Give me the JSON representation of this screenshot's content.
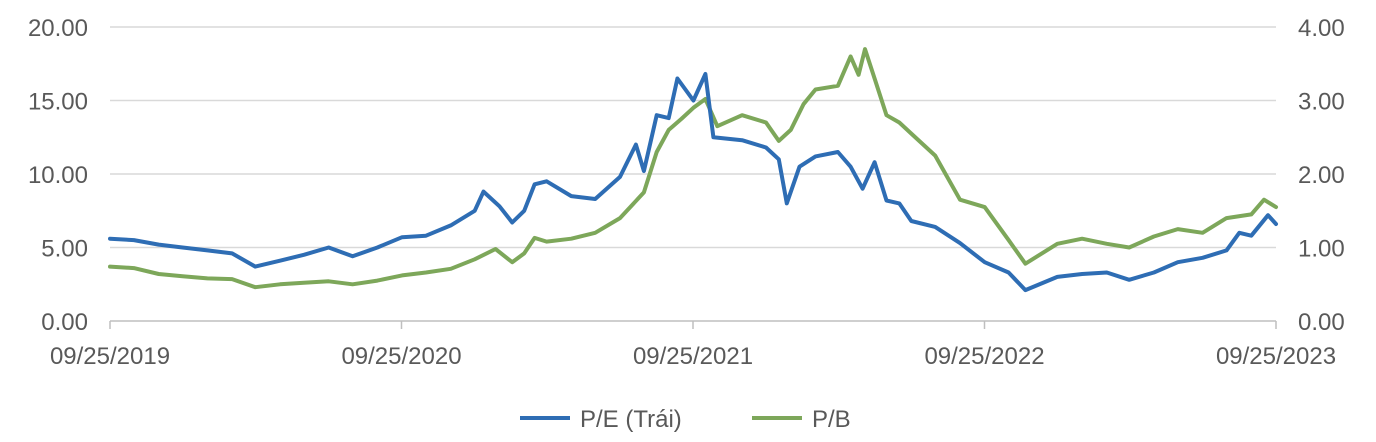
{
  "chart_data": {
    "type": "line",
    "x_ticks": [
      "09/25/2019",
      "09/25/2020",
      "09/25/2021",
      "09/25/2022",
      "09/25/2023"
    ],
    "y_left": {
      "ylim": [
        0,
        20
      ],
      "ticks": [
        "0.00",
        "5.00",
        "10.00",
        "15.00",
        "20.00"
      ]
    },
    "y_right": {
      "ylim": [
        0,
        4
      ],
      "ticks": [
        "0.00",
        "1.00",
        "2.00",
        "3.00",
        "4.00"
      ]
    },
    "grid": true,
    "legend_position": "bottom",
    "series": [
      {
        "name": "P/E (Trái)",
        "axis": "left",
        "color": "#2e6db4",
        "points": [
          [
            "2019-09-25",
            5.6
          ],
          [
            "2019-10-25",
            5.5
          ],
          [
            "2019-11-25",
            5.2
          ],
          [
            "2019-12-25",
            5.0
          ],
          [
            "2020-01-25",
            4.8
          ],
          [
            "2020-02-25",
            4.6
          ],
          [
            "2020-03-25",
            3.7
          ],
          [
            "2020-04-25",
            4.1
          ],
          [
            "2020-05-25",
            4.5
          ],
          [
            "2020-06-25",
            5.0
          ],
          [
            "2020-07-25",
            4.4
          ],
          [
            "2020-08-25",
            5.0
          ],
          [
            "2020-09-25",
            5.7
          ],
          [
            "2020-10-25",
            5.8
          ],
          [
            "2020-11-25",
            6.5
          ],
          [
            "2020-12-25",
            7.5
          ],
          [
            "2021-01-05",
            8.8
          ],
          [
            "2021-01-25",
            7.8
          ],
          [
            "2021-02-10",
            6.7
          ],
          [
            "2021-02-25",
            7.5
          ],
          [
            "2021-03-10",
            9.3
          ],
          [
            "2021-03-25",
            9.5
          ],
          [
            "2021-04-25",
            8.5
          ],
          [
            "2021-05-25",
            8.3
          ],
          [
            "2021-06-25",
            9.8
          ],
          [
            "2021-07-15",
            12.0
          ],
          [
            "2021-07-25",
            10.2
          ],
          [
            "2021-08-10",
            14.0
          ],
          [
            "2021-08-25",
            13.8
          ],
          [
            "2021-09-05",
            16.5
          ],
          [
            "2021-09-25",
            15.0
          ],
          [
            "2021-10-10",
            16.8
          ],
          [
            "2021-10-20",
            12.5
          ],
          [
            "2021-11-25",
            12.3
          ],
          [
            "2021-12-25",
            11.8
          ],
          [
            "2022-01-10",
            11.0
          ],
          [
            "2022-01-20",
            8.0
          ],
          [
            "2022-02-05",
            10.5
          ],
          [
            "2022-02-25",
            11.2
          ],
          [
            "2022-03-25",
            11.5
          ],
          [
            "2022-04-10",
            10.5
          ],
          [
            "2022-04-25",
            9.0
          ],
          [
            "2022-05-10",
            10.8
          ],
          [
            "2022-05-25",
            8.2
          ],
          [
            "2022-06-10",
            8.0
          ],
          [
            "2022-06-25",
            6.8
          ],
          [
            "2022-07-25",
            6.4
          ],
          [
            "2022-08-25",
            5.3
          ],
          [
            "2022-09-25",
            4.0
          ],
          [
            "2022-10-25",
            3.3
          ],
          [
            "2022-11-15",
            2.1
          ],
          [
            "2022-12-25",
            3.0
          ],
          [
            "2023-01-25",
            3.2
          ],
          [
            "2023-02-25",
            3.3
          ],
          [
            "2023-03-25",
            2.8
          ],
          [
            "2023-04-25",
            3.3
          ],
          [
            "2023-05-25",
            4.0
          ],
          [
            "2023-06-25",
            4.3
          ],
          [
            "2023-07-25",
            4.8
          ],
          [
            "2023-08-10",
            6.0
          ],
          [
            "2023-08-25",
            5.8
          ],
          [
            "2023-09-15",
            7.2
          ],
          [
            "2023-09-25",
            6.6
          ]
        ]
      },
      {
        "name": "P/B",
        "axis": "right",
        "color": "#7da75a",
        "points": [
          [
            "2019-09-25",
            0.74
          ],
          [
            "2019-10-25",
            0.72
          ],
          [
            "2019-11-25",
            0.64
          ],
          [
            "2019-12-25",
            0.61
          ],
          [
            "2020-01-25",
            0.58
          ],
          [
            "2020-02-25",
            0.57
          ],
          [
            "2020-03-25",
            0.46
          ],
          [
            "2020-04-25",
            0.5
          ],
          [
            "2020-05-25",
            0.52
          ],
          [
            "2020-06-25",
            0.54
          ],
          [
            "2020-07-25",
            0.5
          ],
          [
            "2020-08-25",
            0.55
          ],
          [
            "2020-09-25",
            0.62
          ],
          [
            "2020-10-25",
            0.66
          ],
          [
            "2020-11-25",
            0.71
          ],
          [
            "2020-12-25",
            0.84
          ],
          [
            "2021-01-20",
            0.98
          ],
          [
            "2021-02-10",
            0.8
          ],
          [
            "2021-02-25",
            0.92
          ],
          [
            "2021-03-10",
            1.13
          ],
          [
            "2021-03-25",
            1.08
          ],
          [
            "2021-04-25",
            1.12
          ],
          [
            "2021-05-25",
            1.2
          ],
          [
            "2021-06-25",
            1.4
          ],
          [
            "2021-07-25",
            1.75
          ],
          [
            "2021-08-10",
            2.3
          ],
          [
            "2021-08-25",
            2.6
          ],
          [
            "2021-09-10",
            2.75
          ],
          [
            "2021-09-25",
            2.9
          ],
          [
            "2021-10-10",
            3.02
          ],
          [
            "2021-10-25",
            2.65
          ],
          [
            "2021-11-25",
            2.8
          ],
          [
            "2021-12-25",
            2.7
          ],
          [
            "2022-01-10",
            2.45
          ],
          [
            "2022-01-25",
            2.6
          ],
          [
            "2022-02-10",
            2.95
          ],
          [
            "2022-02-25",
            3.15
          ],
          [
            "2022-03-25",
            3.2
          ],
          [
            "2022-04-10",
            3.6
          ],
          [
            "2022-04-20",
            3.35
          ],
          [
            "2022-04-28",
            3.7
          ],
          [
            "2022-05-10",
            3.3
          ],
          [
            "2022-05-25",
            2.8
          ],
          [
            "2022-06-10",
            2.7
          ],
          [
            "2022-06-25",
            2.55
          ],
          [
            "2022-07-25",
            2.25
          ],
          [
            "2022-08-25",
            1.65
          ],
          [
            "2022-09-25",
            1.55
          ],
          [
            "2022-10-25",
            1.1
          ],
          [
            "2022-11-15",
            0.78
          ],
          [
            "2022-12-25",
            1.05
          ],
          [
            "2023-01-25",
            1.12
          ],
          [
            "2023-02-25",
            1.05
          ],
          [
            "2023-03-25",
            1.0
          ],
          [
            "2023-04-25",
            1.15
          ],
          [
            "2023-05-25",
            1.25
          ],
          [
            "2023-06-25",
            1.2
          ],
          [
            "2023-07-25",
            1.4
          ],
          [
            "2023-08-25",
            1.45
          ],
          [
            "2023-09-10",
            1.65
          ],
          [
            "2023-09-25",
            1.55
          ]
        ]
      }
    ]
  }
}
